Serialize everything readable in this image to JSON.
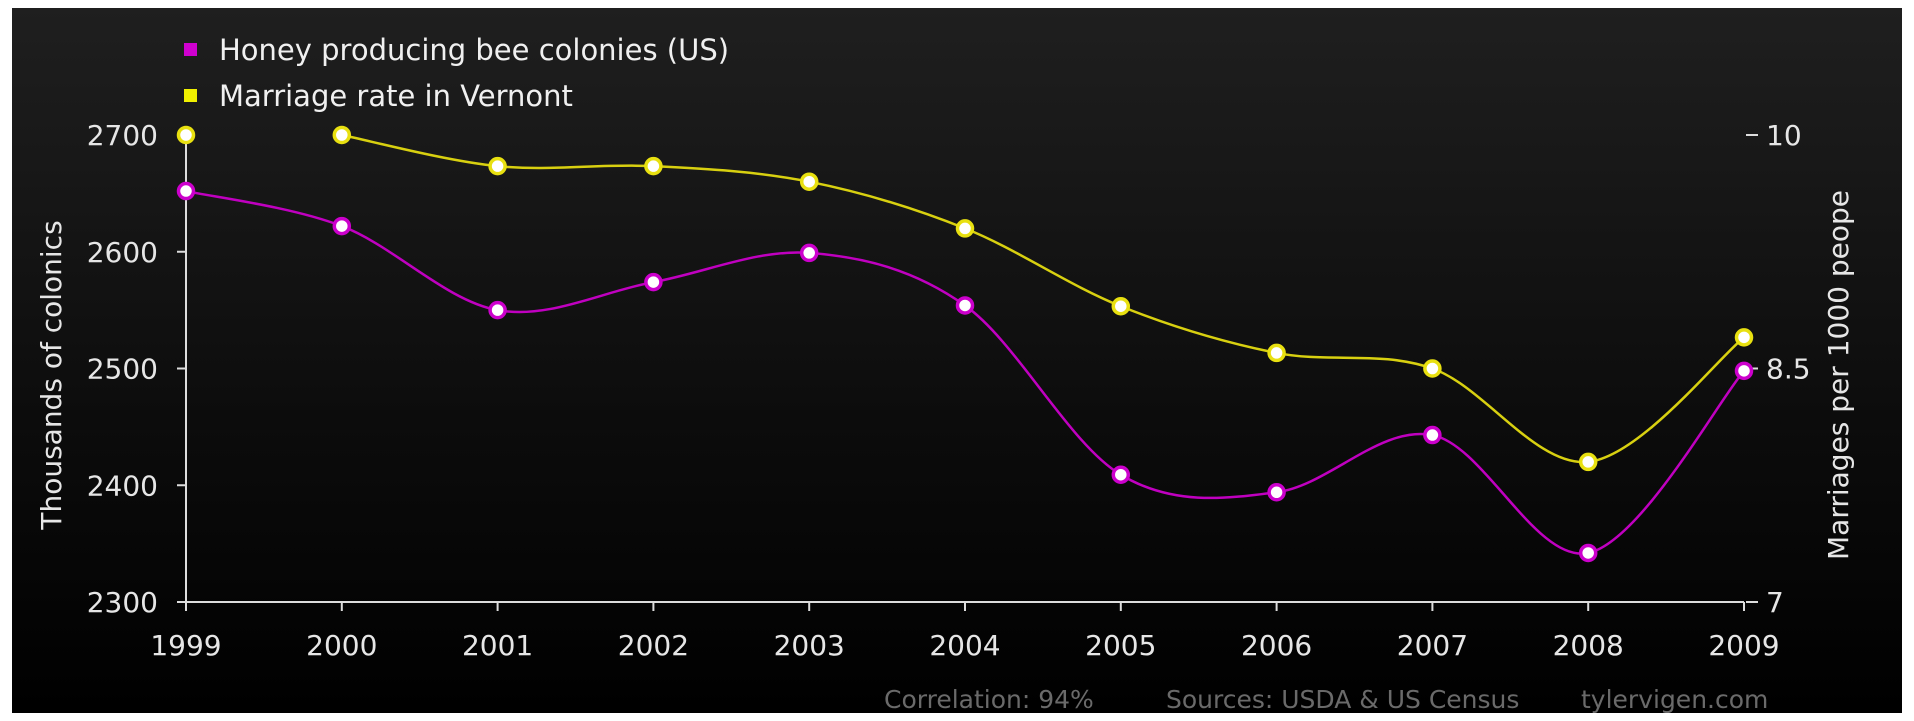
{
  "chart_data": {
    "type": "line",
    "x": [
      "1999",
      "2000",
      "2001",
      "2002",
      "2003",
      "2004",
      "2005",
      "2006",
      "2007",
      "2008",
      "2009"
    ],
    "left_axis": {
      "label": "Thousands of colonics",
      "ylim": [
        2300,
        2700
      ],
      "ticks": [
        2700,
        2600,
        2500,
        2400,
        2300
      ]
    },
    "right_axis": {
      "label": "Marriages per 1000 peope",
      "ylim": [
        7,
        10
      ],
      "ticks": [
        {
          "value": 10,
          "label": "10"
        },
        {
          "value": 8.5,
          "label": "8.5"
        },
        {
          "value": 7,
          "label": "7"
        }
      ]
    },
    "series": [
      {
        "name": "Honey producing bee colonies (US)",
        "axis": "left",
        "color": "#cc00cc",
        "values": [
          2652,
          2622,
          2550,
          2574,
          2599,
          2554,
          2409,
          2394,
          2443,
          2342,
          2498
        ]
      },
      {
        "name": "Marriage rate in Vernont",
        "axis": "right",
        "color": "#e8e010",
        "values": [
          10.0,
          10.0,
          9.8,
          9.8,
          9.7,
          9.4,
          8.9,
          8.6,
          8.5,
          7.9,
          8.7
        ]
      }
    ],
    "legend_position": "top-left",
    "grid": false
  },
  "footer": {
    "correlation": "Correlation: 94%",
    "sources": "Sources: USDA & US Census",
    "site": "tylervigen.com"
  }
}
